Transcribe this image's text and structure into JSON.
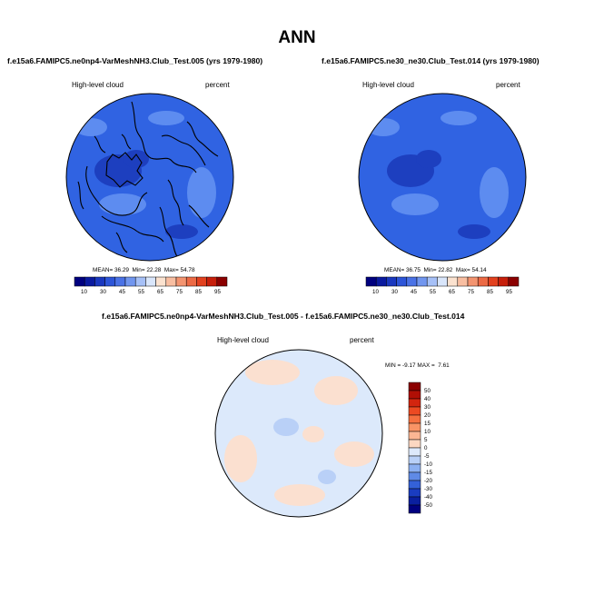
{
  "page": {
    "title": "ANN"
  },
  "colors": {
    "panel_fill": "#3063e2",
    "panel_dark": "#1d3fbf",
    "panel_light": "#5d8cf0",
    "diff_fill": "#dce9fb",
    "diff_warm": "#fbe0d0",
    "coast": "#000000"
  },
  "chart_data": [
    {
      "type": "map",
      "projection": "north-polar-stereographic",
      "title": "f.e15a6.FAMIPC5.ne0np4-VarMeshNH3.Club_Test.005 (yrs 1979-1980)",
      "variable": "High-level cloud",
      "units": "percent",
      "stats": {
        "mean_label": "MEAN=",
        "mean": "36.29",
        "min_label": "Min=",
        "min": "22.28",
        "max_label": "Max=",
        "max": "54.78"
      },
      "colorbar": {
        "orientation": "horizontal",
        "tick_labels": [
          "10",
          "30",
          "45",
          "55",
          "65",
          "75",
          "85",
          "95"
        ],
        "colors": [
          "#00007f",
          "#0a1a9f",
          "#1a38bf",
          "#2d55d8",
          "#4a72e6",
          "#7196ef",
          "#a6c0f7",
          "#d9e6fb",
          "#fbe2cf",
          "#f8bea1",
          "#f39470",
          "#ec6a45",
          "#e2411f",
          "#c71f0b",
          "#8b0000"
        ]
      }
    },
    {
      "type": "map",
      "projection": "north-polar-stereographic",
      "title": "f.e15a6.FAMIPC5.ne30_ne30.Club_Test.014 (yrs 1979-1980)",
      "variable": "High-level cloud",
      "units": "percent",
      "stats": {
        "mean_label": "MEAN=",
        "mean": "36.75",
        "min_label": "Min=",
        "min": "22.82",
        "max_label": "Max=",
        "max": "54.14"
      },
      "colorbar": {
        "orientation": "horizontal",
        "tick_labels": [
          "10",
          "30",
          "45",
          "55",
          "65",
          "75",
          "85",
          "95"
        ],
        "colors": [
          "#00007f",
          "#0a1a9f",
          "#1a38bf",
          "#2d55d8",
          "#4a72e6",
          "#7196ef",
          "#a6c0f7",
          "#d9e6fb",
          "#fbe2cf",
          "#f8bea1",
          "#f39470",
          "#ec6a45",
          "#e2411f",
          "#c71f0b",
          "#8b0000"
        ]
      }
    },
    {
      "type": "map",
      "projection": "north-polar-stereographic",
      "title": "f.e15a6.FAMIPC5.ne0np4-VarMeshNH3.Club_Test.005 - f.e15a6.FAMIPC5.ne30_ne30.Club_Test.014",
      "variable": "High-level cloud",
      "units": "percent",
      "stats": {
        "min_label": "MIN =",
        "min": "-9.17",
        "max_label": "MAX =",
        "max": "7.61"
      },
      "colorbar": {
        "orientation": "vertical",
        "tick_labels": [
          "50",
          "40",
          "30",
          "20",
          "15",
          "10",
          "5",
          "0",
          "-5",
          "-10",
          "-15",
          "-20",
          "-30",
          "-40",
          "-50"
        ],
        "colors": [
          "#8b0000",
          "#b00f05",
          "#d3250f",
          "#ec4a22",
          "#f5703f",
          "#f99465",
          "#fbb693",
          "#fcd7c2",
          "#dde9fb",
          "#b9d0f7",
          "#8cb0f1",
          "#5f8ae6",
          "#3461d8",
          "#1a3cc0",
          "#0a1f9f",
          "#00007f"
        ]
      }
    }
  ]
}
